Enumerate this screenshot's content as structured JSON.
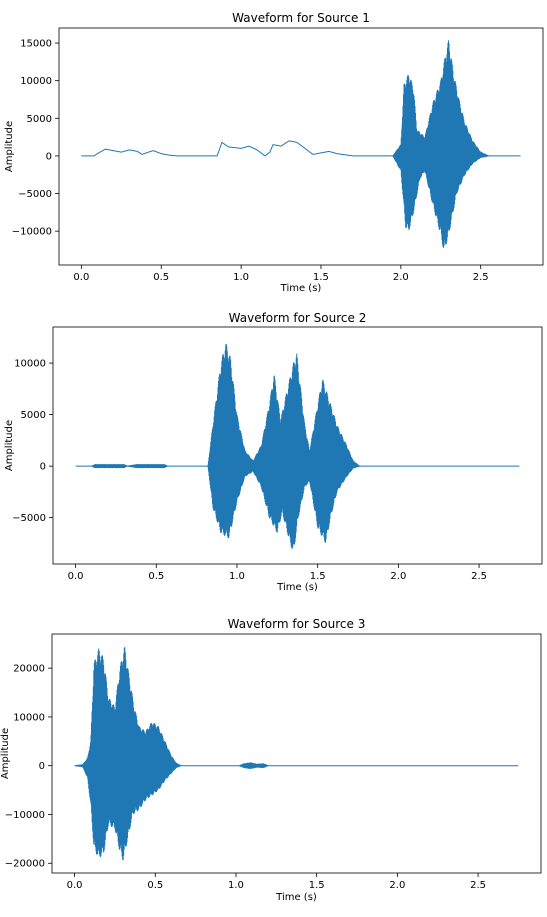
{
  "colors": {
    "series": "#1f77b4",
    "axis": "#000000",
    "background": "#ffffff"
  },
  "chart_data": [
    {
      "type": "line",
      "title": "Waveform for Source 1",
      "xlabel": "Time (s)",
      "ylabel": "Amplitude",
      "xlim": [
        -0.14,
        2.89
      ],
      "ylim": [
        -14500,
        17000
      ],
      "xticks": [
        0.0,
        0.5,
        1.0,
        1.5,
        2.0,
        2.5
      ],
      "xtick_labels": [
        "0.0",
        "0.5",
        "1.0",
        "1.5",
        "2.0",
        "2.5"
      ],
      "yticks": [
        -10000,
        -5000,
        0,
        5000,
        10000,
        15000
      ],
      "ytick_labels": [
        "−10000",
        "−5000",
        "0",
        "5000",
        "10000",
        "15000"
      ],
      "grid": false,
      "legend": "none",
      "duration": 2.75,
      "envelope": {
        "style": "smooth",
        "points": [
          [
            0.0,
            0
          ],
          [
            0.08,
            0
          ],
          [
            0.1,
            300
          ],
          [
            0.15,
            900
          ],
          [
            0.2,
            700
          ],
          [
            0.25,
            500
          ],
          [
            0.3,
            800
          ],
          [
            0.35,
            600
          ],
          [
            0.38,
            200
          ],
          [
            0.42,
            500
          ],
          [
            0.45,
            700
          ],
          [
            0.5,
            300
          ],
          [
            0.55,
            100
          ],
          [
            0.6,
            0
          ],
          [
            0.85,
            0
          ],
          [
            0.88,
            1800
          ],
          [
            0.92,
            1200
          ],
          [
            1.0,
            1000
          ],
          [
            1.05,
            1300
          ],
          [
            1.1,
            800
          ],
          [
            1.15,
            0
          ],
          [
            1.18,
            500
          ],
          [
            1.2,
            1500
          ],
          [
            1.25,
            1300
          ],
          [
            1.3,
            2000
          ],
          [
            1.35,
            1800
          ],
          [
            1.4,
            1000
          ],
          [
            1.45,
            200
          ],
          [
            1.5,
            400
          ],
          [
            1.55,
            600
          ],
          [
            1.6,
            300
          ],
          [
            1.7,
            0
          ],
          [
            2.75,
            0
          ]
        ]
      },
      "oscillation": {
        "up": [
          [
            1.95,
            0
          ],
          [
            2.0,
            1500
          ],
          [
            2.02,
            9500
          ],
          [
            2.05,
            11000
          ],
          [
            2.08,
            9000
          ],
          [
            2.1,
            3500
          ],
          [
            2.15,
            2500
          ],
          [
            2.2,
            7000
          ],
          [
            2.25,
            10000
          ],
          [
            2.28,
            13500
          ],
          [
            2.3,
            15500
          ],
          [
            2.33,
            11000
          ],
          [
            2.37,
            7000
          ],
          [
            2.4,
            4500
          ],
          [
            2.45,
            2000
          ],
          [
            2.5,
            500
          ],
          [
            2.55,
            0
          ]
        ],
        "down": [
          [
            1.95,
            0
          ],
          [
            2.0,
            -2000
          ],
          [
            2.03,
            -9500
          ],
          [
            2.05,
            -10000
          ],
          [
            2.08,
            -7500
          ],
          [
            2.12,
            -3000
          ],
          [
            2.15,
            -2000
          ],
          [
            2.2,
            -6500
          ],
          [
            2.25,
            -10500
          ],
          [
            2.27,
            -12800
          ],
          [
            2.3,
            -10500
          ],
          [
            2.35,
            -5000
          ],
          [
            2.4,
            -2500
          ],
          [
            2.45,
            -1000
          ],
          [
            2.5,
            -200
          ],
          [
            2.55,
            0
          ]
        ]
      }
    },
    {
      "type": "line",
      "title": "Waveform for Source 2",
      "xlabel": "Time (s)",
      "ylabel": "Amplitude",
      "xlim": [
        -0.14,
        2.89
      ],
      "ylim": [
        -9500,
        13500
      ],
      "xticks": [
        0.0,
        0.5,
        1.0,
        1.5,
        2.0,
        2.5
      ],
      "xtick_labels": [
        "0.0",
        "0.5",
        "1.0",
        "1.5",
        "2.0",
        "2.5"
      ],
      "yticks": [
        -5000,
        0,
        5000,
        10000
      ],
      "ytick_labels": [
        "−5000",
        "0",
        "5000",
        "10000"
      ],
      "grid": false,
      "legend": "none",
      "duration": 2.75,
      "oscillation": {
        "up": [
          [
            0.1,
            0
          ],
          [
            0.12,
            150
          ],
          [
            0.3,
            150
          ],
          [
            0.32,
            0
          ],
          [
            0.38,
            150
          ],
          [
            0.55,
            150
          ],
          [
            0.57,
            0
          ],
          [
            0.82,
            0
          ],
          [
            0.85,
            4000
          ],
          [
            0.9,
            10000
          ],
          [
            0.93,
            12000
          ],
          [
            0.96,
            10500
          ],
          [
            1.0,
            5000
          ],
          [
            1.05,
            1500
          ],
          [
            1.1,
            500
          ],
          [
            1.15,
            2000
          ],
          [
            1.2,
            6000
          ],
          [
            1.23,
            9000
          ],
          [
            1.27,
            4500
          ],
          [
            1.32,
            8000
          ],
          [
            1.35,
            10000
          ],
          [
            1.37,
            11000
          ],
          [
            1.42,
            4000
          ],
          [
            1.45,
            1500
          ],
          [
            1.5,
            6000
          ],
          [
            1.53,
            8500
          ],
          [
            1.56,
            7000
          ],
          [
            1.62,
            4000
          ],
          [
            1.68,
            2000
          ],
          [
            1.72,
            500
          ],
          [
            1.76,
            0
          ]
        ],
        "down": [
          [
            0.1,
            0
          ],
          [
            0.12,
            -150
          ],
          [
            0.3,
            -150
          ],
          [
            0.32,
            0
          ],
          [
            0.38,
            -150
          ],
          [
            0.55,
            -150
          ],
          [
            0.57,
            0
          ],
          [
            0.82,
            0
          ],
          [
            0.85,
            -4000
          ],
          [
            0.9,
            -6500
          ],
          [
            0.95,
            -7000
          ],
          [
            1.0,
            -3500
          ],
          [
            1.05,
            -1000
          ],
          [
            1.1,
            -500
          ],
          [
            1.15,
            -2000
          ],
          [
            1.2,
            -5000
          ],
          [
            1.25,
            -6500
          ],
          [
            1.28,
            -4500
          ],
          [
            1.33,
            -7500
          ],
          [
            1.35,
            -8500
          ],
          [
            1.38,
            -5000
          ],
          [
            1.42,
            -2000
          ],
          [
            1.45,
            -1500
          ],
          [
            1.5,
            -6000
          ],
          [
            1.55,
            -7500
          ],
          [
            1.58,
            -5000
          ],
          [
            1.62,
            -2500
          ],
          [
            1.68,
            -1000
          ],
          [
            1.72,
            -200
          ],
          [
            1.76,
            0
          ]
        ]
      }
    },
    {
      "type": "line",
      "title": "Waveform for Source 3",
      "xlabel": "Time (s)",
      "ylabel": "Amplitude",
      "xlim": [
        -0.14,
        2.89
      ],
      "ylim": [
        -22000,
        27000
      ],
      "xticks": [
        0.0,
        0.5,
        1.0,
        1.5,
        2.0,
        2.5
      ],
      "xtick_labels": [
        "0.0",
        "0.5",
        "1.0",
        "1.5",
        "2.0",
        "2.5"
      ],
      "yticks": [
        -20000,
        -10000,
        0,
        10000,
        20000
      ],
      "ytick_labels": [
        "−20000",
        "−10000",
        "0",
        "10000",
        "20000"
      ],
      "grid": false,
      "legend": "none",
      "duration": 2.75,
      "oscillation": {
        "up": [
          [
            0.0,
            0
          ],
          [
            0.05,
            200
          ],
          [
            0.08,
            1500
          ],
          [
            0.1,
            5000
          ],
          [
            0.12,
            21000
          ],
          [
            0.15,
            24000
          ],
          [
            0.18,
            22000
          ],
          [
            0.21,
            14000
          ],
          [
            0.25,
            12000
          ],
          [
            0.28,
            20000
          ],
          [
            0.31,
            24500
          ],
          [
            0.34,
            18000
          ],
          [
            0.37,
            12000
          ],
          [
            0.4,
            8000
          ],
          [
            0.44,
            7000
          ],
          [
            0.48,
            9000
          ],
          [
            0.52,
            8000
          ],
          [
            0.56,
            5000
          ],
          [
            0.6,
            2000
          ],
          [
            0.63,
            500
          ],
          [
            0.66,
            0
          ],
          [
            1.02,
            0
          ],
          [
            1.05,
            400
          ],
          [
            1.09,
            600
          ],
          [
            1.13,
            300
          ],
          [
            1.17,
            400
          ],
          [
            1.2,
            0
          ]
        ],
        "down": [
          [
            0.0,
            0
          ],
          [
            0.05,
            -200
          ],
          [
            0.08,
            -2500
          ],
          [
            0.1,
            -8000
          ],
          [
            0.12,
            -17000
          ],
          [
            0.15,
            -19000
          ],
          [
            0.18,
            -18000
          ],
          [
            0.21,
            -12000
          ],
          [
            0.25,
            -13000
          ],
          [
            0.28,
            -17500
          ],
          [
            0.3,
            -19500
          ],
          [
            0.33,
            -15000
          ],
          [
            0.36,
            -10000
          ],
          [
            0.4,
            -9000
          ],
          [
            0.44,
            -7000
          ],
          [
            0.48,
            -6000
          ],
          [
            0.52,
            -5000
          ],
          [
            0.56,
            -3000
          ],
          [
            0.6,
            -1500
          ],
          [
            0.63,
            -400
          ],
          [
            0.66,
            0
          ],
          [
            1.02,
            0
          ],
          [
            1.05,
            -400
          ],
          [
            1.09,
            -600
          ],
          [
            1.13,
            -300
          ],
          [
            1.17,
            -400
          ],
          [
            1.2,
            0
          ]
        ]
      }
    }
  ]
}
